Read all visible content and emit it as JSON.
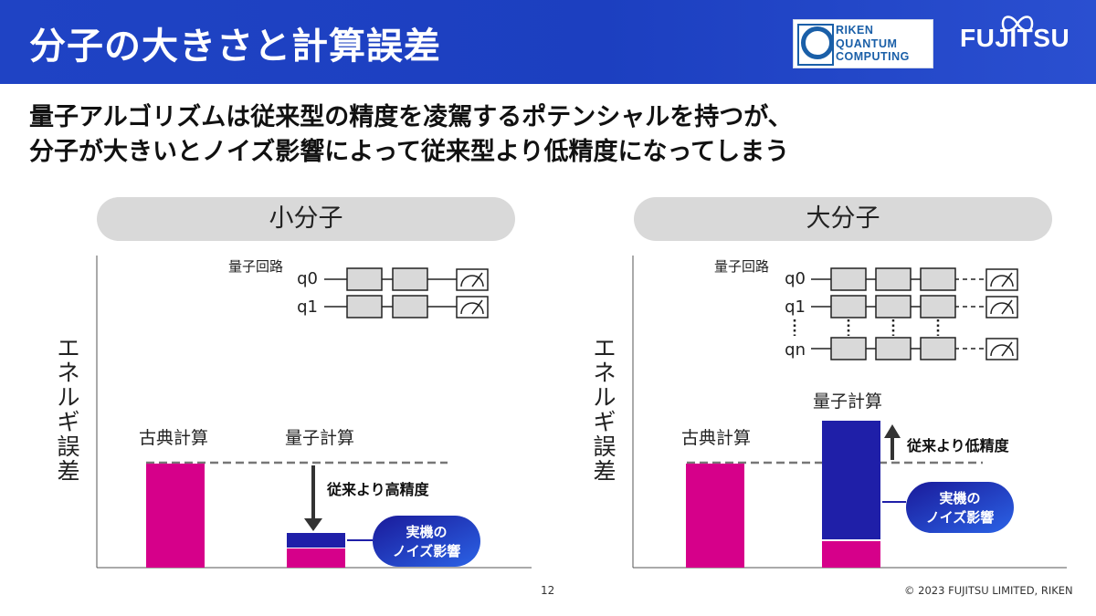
{
  "header": {
    "title": "分子の大きさと計算誤差",
    "logo_riken": [
      "RIKEN",
      "QUANTUM",
      "COMPUTING"
    ],
    "logo_fujitsu": "FUJITSU"
  },
  "headline": {
    "line1": "量子アルゴリズムは従来型の精度を凌駕するポテンシャルを持つが、",
    "line2": "分子が大きいとノイズ影響によって従来型より低精度になってしまう"
  },
  "panels": [
    {
      "title": "小分子",
      "y_axis_label": "エネルギ誤差",
      "circuit_label": "量子回路",
      "qubits": [
        "q0",
        "q1"
      ],
      "bars": [
        {
          "label": "古典計算"
        },
        {
          "label": "量子計算"
        }
      ],
      "arrow_label": "従来より高精度",
      "noise_label": [
        "実機の",
        "ノイズ影響"
      ]
    },
    {
      "title": "大分子",
      "y_axis_label": "エネルギ誤差",
      "circuit_label": "量子回路",
      "qubits": [
        "q0",
        "q1",
        "qn"
      ],
      "bars": [
        {
          "label": "古典計算"
        },
        {
          "label": "量子計算"
        }
      ],
      "arrow_label": "従来より低精度",
      "noise_label": [
        "実機の",
        "ノイズ影響"
      ]
    }
  ],
  "colors": {
    "classical_bar": "#d6008a",
    "noise_bar": "#1f1fa8",
    "header_bg": "#1f43c4",
    "pill_bg": "#d9d9d9",
    "gate_fill": "#d9d9d9"
  },
  "footer": {
    "slide_number": "12",
    "copyright": "© 2023 FUJITSU LIMITED, RIKEN"
  }
}
